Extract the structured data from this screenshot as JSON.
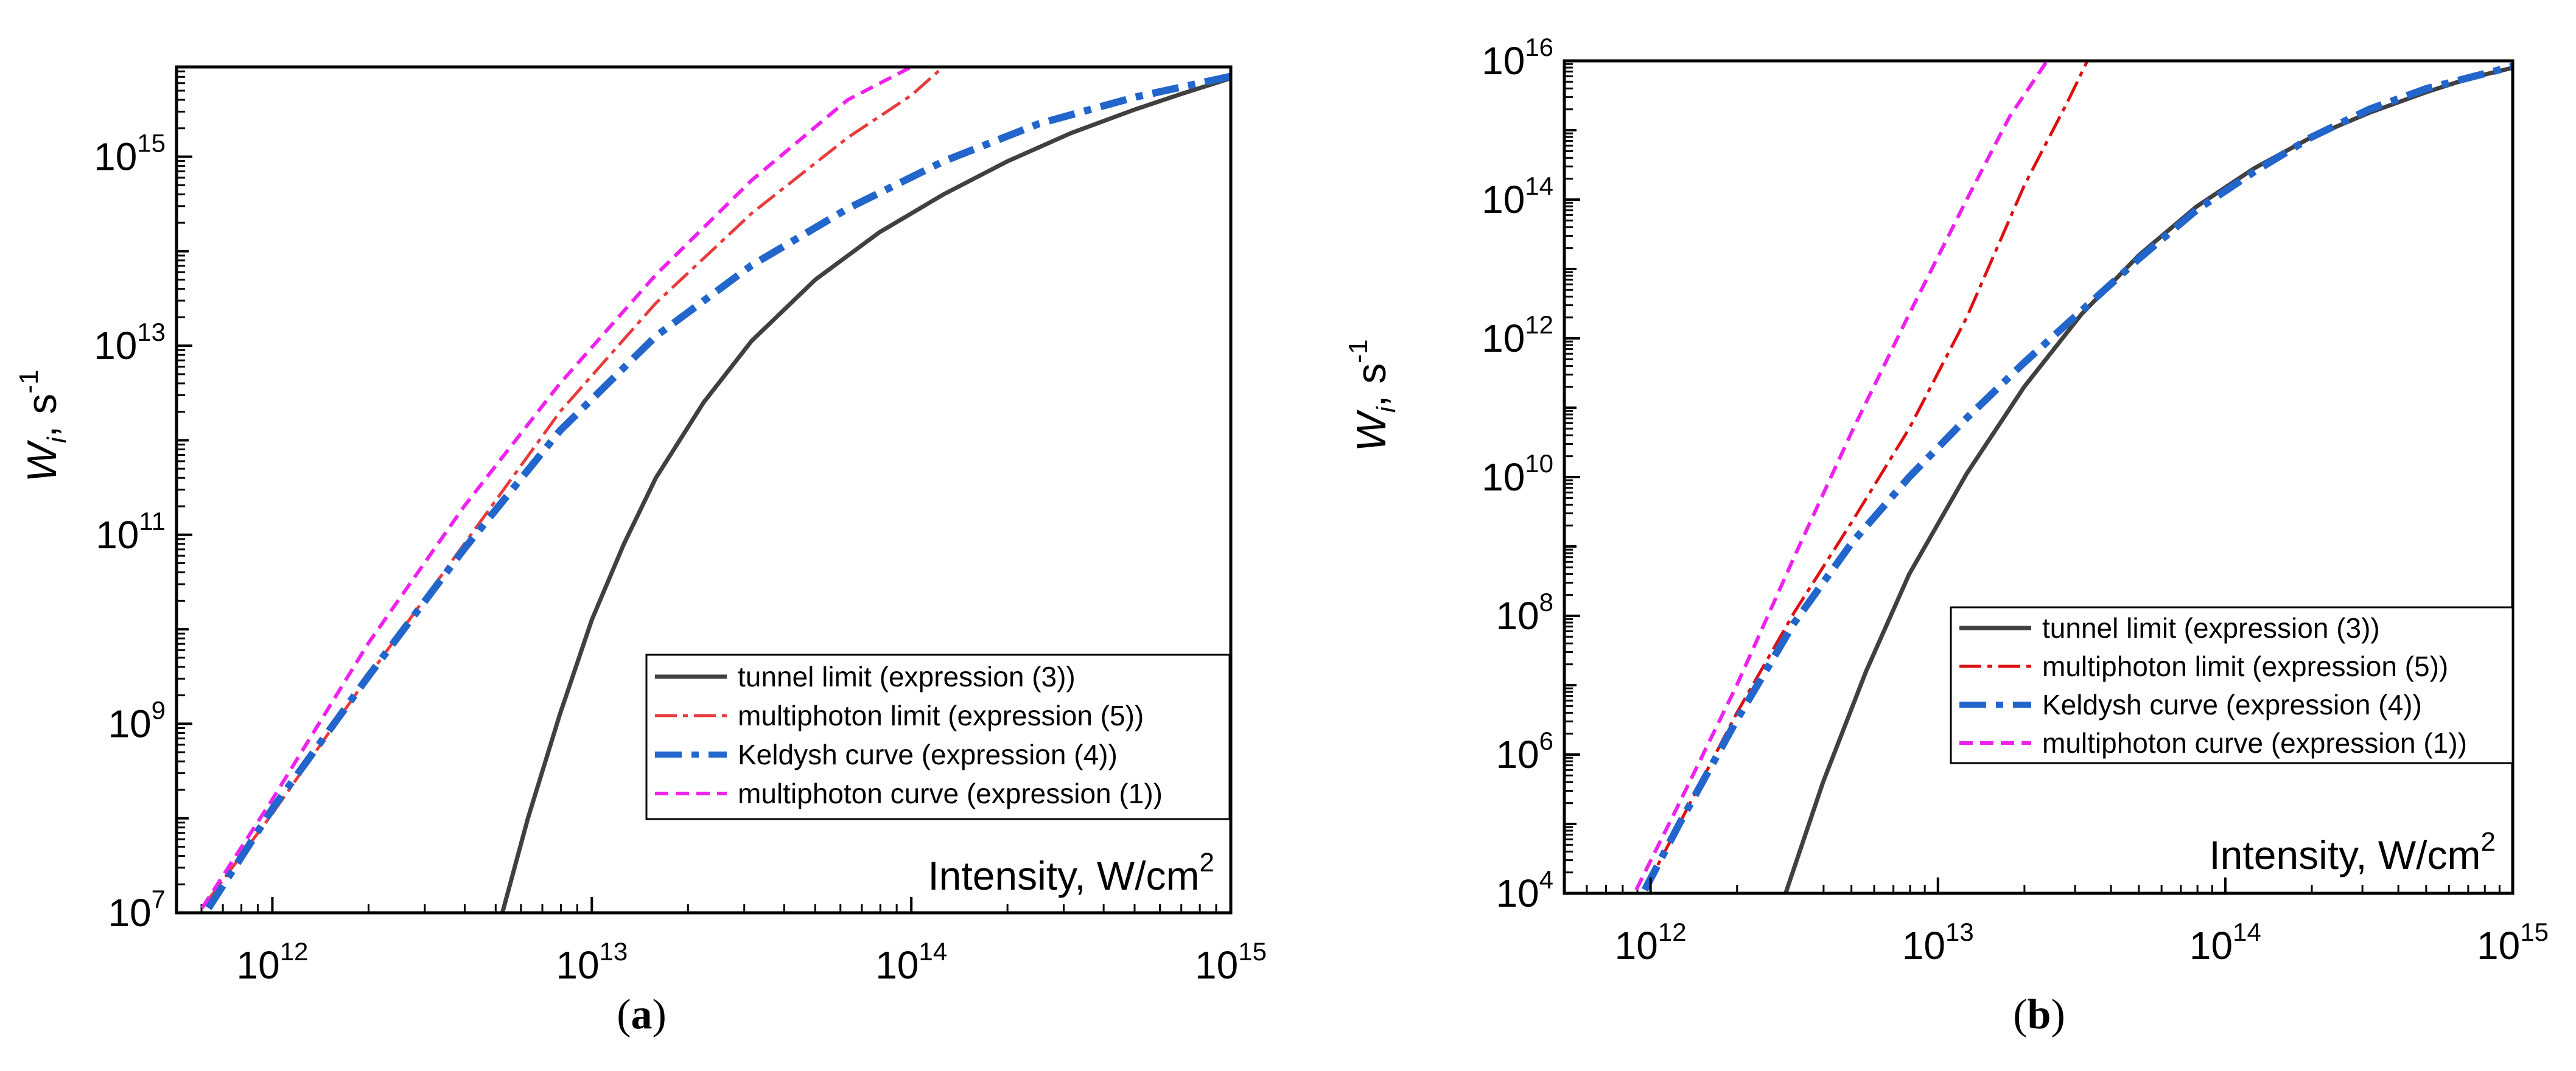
{
  "panels": [
    {
      "caption_label": "a",
      "chart_data": {
        "type": "line",
        "xscale": "log",
        "yscale": "log",
        "xlim_exp": [
          11.7,
          15
        ],
        "ylim_exp": [
          7,
          15.95
        ],
        "x_ticks": [
          {
            "base": "10",
            "exp": "12"
          },
          {
            "base": "10",
            "exp": "13"
          },
          {
            "base": "10",
            "exp": "14"
          },
          {
            "base": "10",
            "exp": "15"
          }
        ],
        "y_ticks": [
          {
            "base": "10",
            "exp": "7"
          },
          {
            "base": "10",
            "exp": "9"
          },
          {
            "base": "10",
            "exp": "11"
          },
          {
            "base": "10",
            "exp": "13"
          },
          {
            "base": "10",
            "exp": "15"
          }
        ],
        "x_tick_exps": [
          12,
          13,
          14,
          15
        ],
        "y_tick_exps": [
          7,
          9,
          11,
          13,
          15
        ],
        "xlabel": {
          "text": "Intensity, W/cm",
          "sup": "2"
        },
        "ylabel": {
          "main": "W",
          "sub": "i",
          "rest": ", s",
          "sup": "-1"
        },
        "legend_position": "lower-right",
        "series": [
          {
            "name": "tunnel limit (expression (3))",
            "color": "#404040",
            "style": "solid",
            "log_x": [
              12.72,
              12.8,
              12.9,
              13.0,
              13.1,
              13.2,
              13.35,
              13.5,
              13.7,
              13.9,
              14.1,
              14.3,
              14.5,
              14.7,
              14.85,
              15.0
            ],
            "log_y": [
              7.0,
              8.0,
              9.1,
              10.1,
              10.9,
              11.6,
              12.4,
              13.05,
              13.7,
              14.2,
              14.6,
              14.95,
              15.25,
              15.5,
              15.67,
              15.83
            ]
          },
          {
            "name": "multiphoton limit (expression (5))",
            "color": "#e83c3c",
            "style": "dashdot",
            "log_x": [
              11.78,
              12.0,
              12.3,
              12.6,
              12.9,
              13.2,
              13.5,
              13.8,
              14.0,
              14.1
            ],
            "log_y": [
              7.05,
              8.05,
              9.5,
              10.9,
              12.3,
              13.45,
              14.4,
              15.2,
              15.65,
              15.95
            ]
          },
          {
            "name": "Keldysh curve (expression (4))",
            "color": "#2266cc",
            "style": "dashdot-bold",
            "log_x": [
              11.8,
              12.0,
              12.3,
              12.6,
              12.9,
              13.2,
              13.5,
              13.8,
              14.1,
              14.4,
              14.7,
              15.0
            ],
            "log_y": [
              7.05,
              8.1,
              9.5,
              10.85,
              12.1,
              13.1,
              13.85,
              14.45,
              14.95,
              15.35,
              15.63,
              15.85
            ]
          },
          {
            "name": "multiphoton curve (expression (1))",
            "color": "#ee22ee",
            "style": "dashed",
            "log_x": [
              11.78,
              12.0,
              12.3,
              12.6,
              12.9,
              13.2,
              13.5,
              13.8,
              14.0
            ],
            "log_y": [
              7.05,
              8.2,
              9.85,
              11.3,
              12.6,
              13.75,
              14.75,
              15.6,
              15.95
            ]
          }
        ]
      }
    },
    {
      "caption_label": "b",
      "chart_data": {
        "type": "line",
        "xscale": "log",
        "yscale": "log",
        "xlim_exp": [
          11.7,
          15
        ],
        "ylim_exp": [
          4,
          16
        ],
        "x_ticks": [
          {
            "base": "10",
            "exp": "12"
          },
          {
            "base": "10",
            "exp": "13"
          },
          {
            "base": "10",
            "exp": "14"
          },
          {
            "base": "10",
            "exp": "15"
          }
        ],
        "y_ticks": [
          {
            "base": "10",
            "exp": "4"
          },
          {
            "base": "10",
            "exp": "6"
          },
          {
            "base": "10",
            "exp": "8"
          },
          {
            "base": "10",
            "exp": "10"
          },
          {
            "base": "10",
            "exp": "12"
          },
          {
            "base": "10",
            "exp": "14"
          },
          {
            "base": "10",
            "exp": "16"
          }
        ],
        "x_tick_exps": [
          12,
          13,
          14,
          15
        ],
        "y_tick_exps": [
          4,
          6,
          8,
          10,
          12,
          14,
          16
        ],
        "xlabel": {
          "text": "Intensity, W/cm",
          "sup": "2"
        },
        "ylabel": {
          "main": "W",
          "sub": "i",
          "rest": ", s",
          "sup": "-1"
        },
        "legend_position": "lower-right",
        "series": [
          {
            "name": "tunnel limit (expression (3))",
            "color": "#404040",
            "style": "solid",
            "log_x": [
              12.47,
              12.6,
              12.75,
              12.9,
              13.1,
              13.3,
              13.5,
              13.7,
              13.9,
              14.1,
              14.3,
              14.5,
              14.7,
              14.85,
              15.0
            ],
            "log_y": [
              4.0,
              5.6,
              7.2,
              8.6,
              10.05,
              11.3,
              12.35,
              13.2,
              13.9,
              14.45,
              14.9,
              15.25,
              15.55,
              15.75,
              15.9
            ]
          },
          {
            "name": "multiphoton limit (expression (5))",
            "color": "#dd1111",
            "style": "dashdot",
            "log_x": [
              11.98,
              12.1,
              12.3,
              12.5,
              12.7,
              12.9,
              13.1,
              13.3,
              13.45,
              13.52
            ],
            "log_y": [
              4.05,
              5.0,
              6.6,
              8.05,
              9.35,
              10.7,
              12.3,
              14.2,
              15.4,
              16.0
            ]
          },
          {
            "name": "Keldysh curve (expression (4))",
            "color": "#2266cc",
            "style": "dashdot-bold",
            "log_x": [
              11.98,
              12.1,
              12.3,
              12.5,
              12.7,
              12.9,
              13.1,
              13.3,
              13.5,
              13.7,
              13.9,
              14.1,
              14.3,
              14.5,
              14.7,
              15.0
            ],
            "log_y": [
              4.05,
              5.0,
              6.5,
              7.9,
              9.05,
              10.0,
              10.85,
              11.65,
              12.4,
              13.15,
              13.85,
              14.4,
              14.9,
              15.3,
              15.6,
              15.92
            ]
          },
          {
            "name": "multiphoton curve (expression (1))",
            "color": "#ee22ee",
            "style": "dashed",
            "log_x": [
              11.95,
              12.1,
              12.3,
              12.5,
              12.7,
              12.9,
              13.1,
              13.25,
              13.38
            ],
            "log_y": [
              4.05,
              5.3,
              7.0,
              8.85,
              10.65,
              12.35,
              14.0,
              15.2,
              16.0
            ]
          }
        ]
      }
    }
  ]
}
